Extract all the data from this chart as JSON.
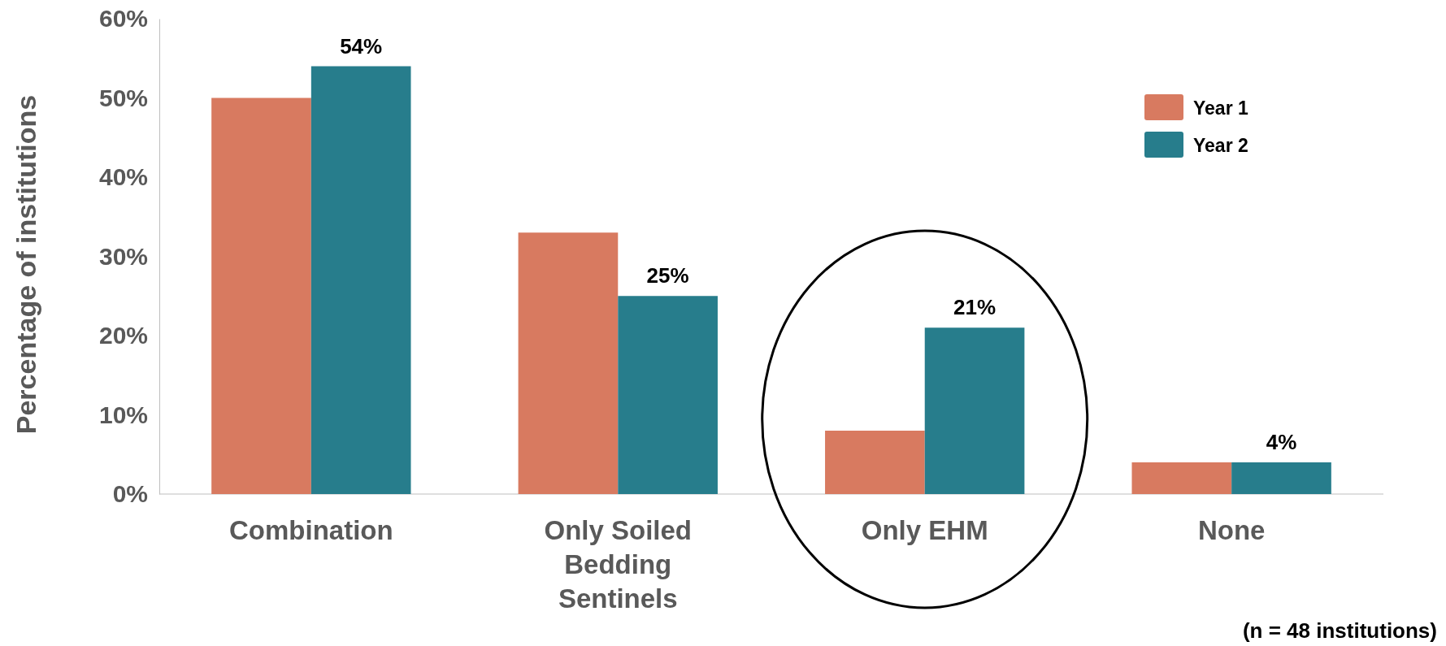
{
  "chart_data": {
    "type": "bar",
    "ylabel": "Percentage of institutions",
    "categories": [
      "Combination",
      "Only Soiled Bedding Sentinels",
      "Only EHM",
      "None"
    ],
    "series": [
      {
        "name": "Year 1",
        "color": "#d87a60",
        "values": [
          50,
          33,
          8,
          4
        ]
      },
      {
        "name": "Year 2",
        "color": "#277d8c",
        "values": [
          54,
          25,
          21,
          4
        ],
        "value_labels": [
          "54%",
          "25%",
          "21%",
          "4%"
        ]
      }
    ],
    "ylim": [
      0,
      60
    ],
    "yticks": [
      {
        "value": 0,
        "label": "0%"
      },
      {
        "value": 10,
        "label": "10%"
      },
      {
        "value": 20,
        "label": "20%"
      },
      {
        "value": 30,
        "label": "30%"
      },
      {
        "value": 40,
        "label": "40%"
      },
      {
        "value": 50,
        "label": "50%"
      },
      {
        "value": 60,
        "label": "60%"
      }
    ],
    "grid": false,
    "legend": "top right",
    "annotations": [
      "(n = 48 institutions)"
    ]
  }
}
